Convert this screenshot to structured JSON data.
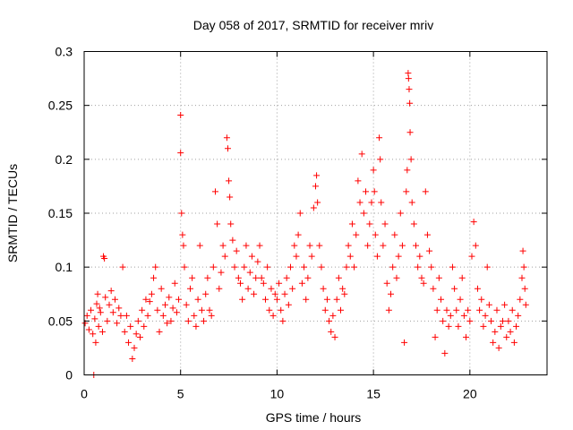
{
  "chart_data": {
    "type": "scatter",
    "title": "Day 058 of 2017, SRMTID for receiver mriv",
    "xlabel": "GPS time / hours",
    "ylabel": "SRMTID / TECUs",
    "xlim": [
      0,
      24
    ],
    "ylim": [
      0,
      0.3
    ],
    "xticks": [
      0,
      5,
      10,
      15,
      20
    ],
    "xtick_labels": [
      "0",
      "5",
      "10",
      "15",
      "20"
    ],
    "yticks": [
      0,
      0.05,
      0.1,
      0.15,
      0.2,
      0.25,
      0.3
    ],
    "ytick_labels": [
      "0",
      "0.05",
      "0.1",
      "0.15",
      "0.2",
      "0.25",
      "0.3"
    ],
    "grid": true,
    "marker": "plus",
    "color": "#ff0000",
    "series": [
      {
        "name": "SRMTID",
        "points": [
          [
            0.05,
            0.048
          ],
          [
            0.15,
            0.055
          ],
          [
            0.25,
            0.042
          ],
          [
            0.35,
            0.06
          ],
          [
            0.45,
            0.038
          ],
          [
            0.55,
            0.052
          ],
          [
            0.65,
            0.066
          ],
          [
            0.75,
            0.045
          ],
          [
            0.85,
            0.058
          ],
          [
            0.95,
            0.04
          ],
          [
            0.5,
            0.0
          ],
          [
            0.6,
            0.03
          ],
          [
            0.7,
            0.075
          ],
          [
            0.8,
            0.062
          ],
          [
            1.0,
            0.11
          ],
          [
            1.05,
            0.108
          ],
          [
            1.1,
            0.072
          ],
          [
            1.2,
            0.05
          ],
          [
            1.3,
            0.065
          ],
          [
            1.4,
            0.078
          ],
          [
            1.5,
            0.058
          ],
          [
            1.6,
            0.07
          ],
          [
            1.7,
            0.048
          ],
          [
            1.8,
            0.062
          ],
          [
            1.9,
            0.055
          ],
          [
            2.0,
            0.1
          ],
          [
            2.1,
            0.04
          ],
          [
            2.2,
            0.055
          ],
          [
            2.3,
            0.03
          ],
          [
            2.4,
            0.045
          ],
          [
            2.5,
            0.015
          ],
          [
            2.6,
            0.025
          ],
          [
            2.7,
            0.038
          ],
          [
            2.8,
            0.05
          ],
          [
            2.9,
            0.035
          ],
          [
            3.0,
            0.06
          ],
          [
            3.1,
            0.045
          ],
          [
            3.2,
            0.07
          ],
          [
            3.3,
            0.055
          ],
          [
            3.4,
            0.068
          ],
          [
            3.5,
            0.075
          ],
          [
            3.6,
            0.09
          ],
          [
            3.7,
            0.1
          ],
          [
            3.8,
            0.06
          ],
          [
            3.9,
            0.04
          ],
          [
            4.0,
            0.08
          ],
          [
            4.1,
            0.055
          ],
          [
            4.2,
            0.065
          ],
          [
            4.3,
            0.048
          ],
          [
            4.4,
            0.072
          ],
          [
            4.5,
            0.05
          ],
          [
            4.6,
            0.062
          ],
          [
            4.7,
            0.085
          ],
          [
            4.8,
            0.058
          ],
          [
            4.9,
            0.07
          ],
          [
            5.0,
            0.241
          ],
          [
            5.0,
            0.206
          ],
          [
            5.05,
            0.15
          ],
          [
            5.1,
            0.13
          ],
          [
            5.15,
            0.12
          ],
          [
            5.2,
            0.1
          ],
          [
            5.3,
            0.065
          ],
          [
            5.4,
            0.05
          ],
          [
            5.5,
            0.08
          ],
          [
            5.6,
            0.09
          ],
          [
            5.7,
            0.055
          ],
          [
            5.8,
            0.045
          ],
          [
            5.9,
            0.07
          ],
          [
            6.0,
            0.12
          ],
          [
            6.1,
            0.06
          ],
          [
            6.2,
            0.05
          ],
          [
            6.3,
            0.075
          ],
          [
            6.4,
            0.09
          ],
          [
            6.5,
            0.06
          ],
          [
            6.6,
            0.055
          ],
          [
            6.7,
            0.1
          ],
          [
            6.8,
            0.17
          ],
          [
            6.9,
            0.14
          ],
          [
            7.0,
            0.08
          ],
          [
            7.1,
            0.095
          ],
          [
            7.2,
            0.12
          ],
          [
            7.3,
            0.11
          ],
          [
            7.4,
            0.22
          ],
          [
            7.45,
            0.21
          ],
          [
            7.5,
            0.18
          ],
          [
            7.55,
            0.165
          ],
          [
            7.6,
            0.14
          ],
          [
            7.7,
            0.125
          ],
          [
            7.8,
            0.1
          ],
          [
            7.9,
            0.115
          ],
          [
            8.0,
            0.09
          ],
          [
            8.1,
            0.085
          ],
          [
            8.2,
            0.07
          ],
          [
            8.3,
            0.1
          ],
          [
            8.4,
            0.12
          ],
          [
            8.5,
            0.08
          ],
          [
            8.6,
            0.095
          ],
          [
            8.7,
            0.11
          ],
          [
            8.8,
            0.075
          ],
          [
            8.9,
            0.09
          ],
          [
            9.0,
            0.105
          ],
          [
            9.1,
            0.12
          ],
          [
            9.2,
            0.09
          ],
          [
            9.3,
            0.085
          ],
          [
            9.4,
            0.07
          ],
          [
            9.5,
            0.1
          ],
          [
            9.6,
            0.06
          ],
          [
            9.7,
            0.08
          ],
          [
            9.8,
            0.055
          ],
          [
            9.9,
            0.075
          ],
          [
            10.0,
            0.07
          ],
          [
            10.1,
            0.085
          ],
          [
            10.2,
            0.06
          ],
          [
            10.3,
            0.05
          ],
          [
            10.4,
            0.075
          ],
          [
            10.5,
            0.09
          ],
          [
            10.6,
            0.065
          ],
          [
            10.7,
            0.1
          ],
          [
            10.8,
            0.08
          ],
          [
            10.9,
            0.12
          ],
          [
            11.0,
            0.11
          ],
          [
            11.1,
            0.13
          ],
          [
            11.2,
            0.15
          ],
          [
            11.3,
            0.085
          ],
          [
            11.4,
            0.1
          ],
          [
            11.5,
            0.07
          ],
          [
            11.6,
            0.09
          ],
          [
            11.7,
            0.12
          ],
          [
            11.8,
            0.11
          ],
          [
            11.9,
            0.155
          ],
          [
            12.0,
            0.175
          ],
          [
            12.05,
            0.185
          ],
          [
            12.1,
            0.16
          ],
          [
            12.2,
            0.12
          ],
          [
            12.3,
            0.1
          ],
          [
            12.4,
            0.08
          ],
          [
            12.5,
            0.06
          ],
          [
            12.6,
            0.07
          ],
          [
            12.7,
            0.05
          ],
          [
            12.8,
            0.04
          ],
          [
            12.9,
            0.055
          ],
          [
            13.0,
            0.035
          ],
          [
            13.1,
            0.07
          ],
          [
            13.2,
            0.09
          ],
          [
            13.3,
            0.06
          ],
          [
            13.4,
            0.08
          ],
          [
            13.5,
            0.075
          ],
          [
            13.6,
            0.1
          ],
          [
            13.7,
            0.12
          ],
          [
            13.8,
            0.11
          ],
          [
            13.9,
            0.14
          ],
          [
            14.0,
            0.1
          ],
          [
            14.1,
            0.13
          ],
          [
            14.2,
            0.18
          ],
          [
            14.3,
            0.16
          ],
          [
            14.4,
            0.205
          ],
          [
            14.5,
            0.15
          ],
          [
            14.6,
            0.17
          ],
          [
            14.7,
            0.12
          ],
          [
            14.8,
            0.14
          ],
          [
            14.9,
            0.16
          ],
          [
            15.0,
            0.19
          ],
          [
            15.05,
            0.17
          ],
          [
            15.1,
            0.13
          ],
          [
            15.2,
            0.11
          ],
          [
            15.3,
            0.22
          ],
          [
            15.35,
            0.2
          ],
          [
            15.4,
            0.16
          ],
          [
            15.5,
            0.12
          ],
          [
            15.6,
            0.14
          ],
          [
            15.7,
            0.085
          ],
          [
            15.8,
            0.06
          ],
          [
            15.9,
            0.075
          ],
          [
            16.0,
            0.1
          ],
          [
            16.1,
            0.13
          ],
          [
            16.2,
            0.09
          ],
          [
            16.3,
            0.11
          ],
          [
            16.4,
            0.15
          ],
          [
            16.5,
            0.12
          ],
          [
            16.6,
            0.03
          ],
          [
            16.7,
            0.17
          ],
          [
            16.75,
            0.19
          ],
          [
            16.8,
            0.28
          ],
          [
            16.82,
            0.275
          ],
          [
            16.85,
            0.265
          ],
          [
            16.88,
            0.252
          ],
          [
            16.9,
            0.225
          ],
          [
            16.95,
            0.2
          ],
          [
            17.0,
            0.16
          ],
          [
            17.1,
            0.14
          ],
          [
            17.2,
            0.12
          ],
          [
            17.3,
            0.1
          ],
          [
            17.4,
            0.11
          ],
          [
            17.5,
            0.09
          ],
          [
            17.6,
            0.085
          ],
          [
            17.7,
            0.17
          ],
          [
            17.8,
            0.13
          ],
          [
            17.9,
            0.115
          ],
          [
            18.0,
            0.1
          ],
          [
            18.1,
            0.08
          ],
          [
            18.2,
            0.035
          ],
          [
            18.3,
            0.06
          ],
          [
            18.4,
            0.09
          ],
          [
            18.5,
            0.07
          ],
          [
            18.6,
            0.05
          ],
          [
            18.7,
            0.02
          ],
          [
            18.8,
            0.06
          ],
          [
            18.9,
            0.045
          ],
          [
            19.0,
            0.055
          ],
          [
            19.1,
            0.1
          ],
          [
            19.2,
            0.08
          ],
          [
            19.3,
            0.06
          ],
          [
            19.4,
            0.045
          ],
          [
            19.5,
            0.07
          ],
          [
            19.6,
            0.09
          ],
          [
            19.7,
            0.055
          ],
          [
            19.8,
            0.035
          ],
          [
            19.9,
            0.06
          ],
          [
            20.0,
            0.05
          ],
          [
            20.1,
            0.11
          ],
          [
            20.2,
            0.142
          ],
          [
            20.3,
            0.12
          ],
          [
            20.4,
            0.08
          ],
          [
            20.5,
            0.06
          ],
          [
            20.6,
            0.07
          ],
          [
            20.7,
            0.045
          ],
          [
            20.8,
            0.055
          ],
          [
            20.9,
            0.1
          ],
          [
            21.0,
            0.065
          ],
          [
            21.1,
            0.05
          ],
          [
            21.2,
            0.03
          ],
          [
            21.3,
            0.04
          ],
          [
            21.4,
            0.06
          ],
          [
            21.5,
            0.025
          ],
          [
            21.6,
            0.045
          ],
          [
            21.7,
            0.05
          ],
          [
            21.8,
            0.065
          ],
          [
            21.9,
            0.035
          ],
          [
            22.0,
            0.05
          ],
          [
            22.1,
            0.04
          ],
          [
            22.2,
            0.06
          ],
          [
            22.3,
            0.03
          ],
          [
            22.4,
            0.045
          ],
          [
            22.5,
            0.055
          ],
          [
            22.6,
            0.07
          ],
          [
            22.7,
            0.09
          ],
          [
            22.75,
            0.115
          ],
          [
            22.8,
            0.1
          ],
          [
            22.85,
            0.08
          ],
          [
            22.9,
            0.065
          ]
        ]
      }
    ]
  }
}
